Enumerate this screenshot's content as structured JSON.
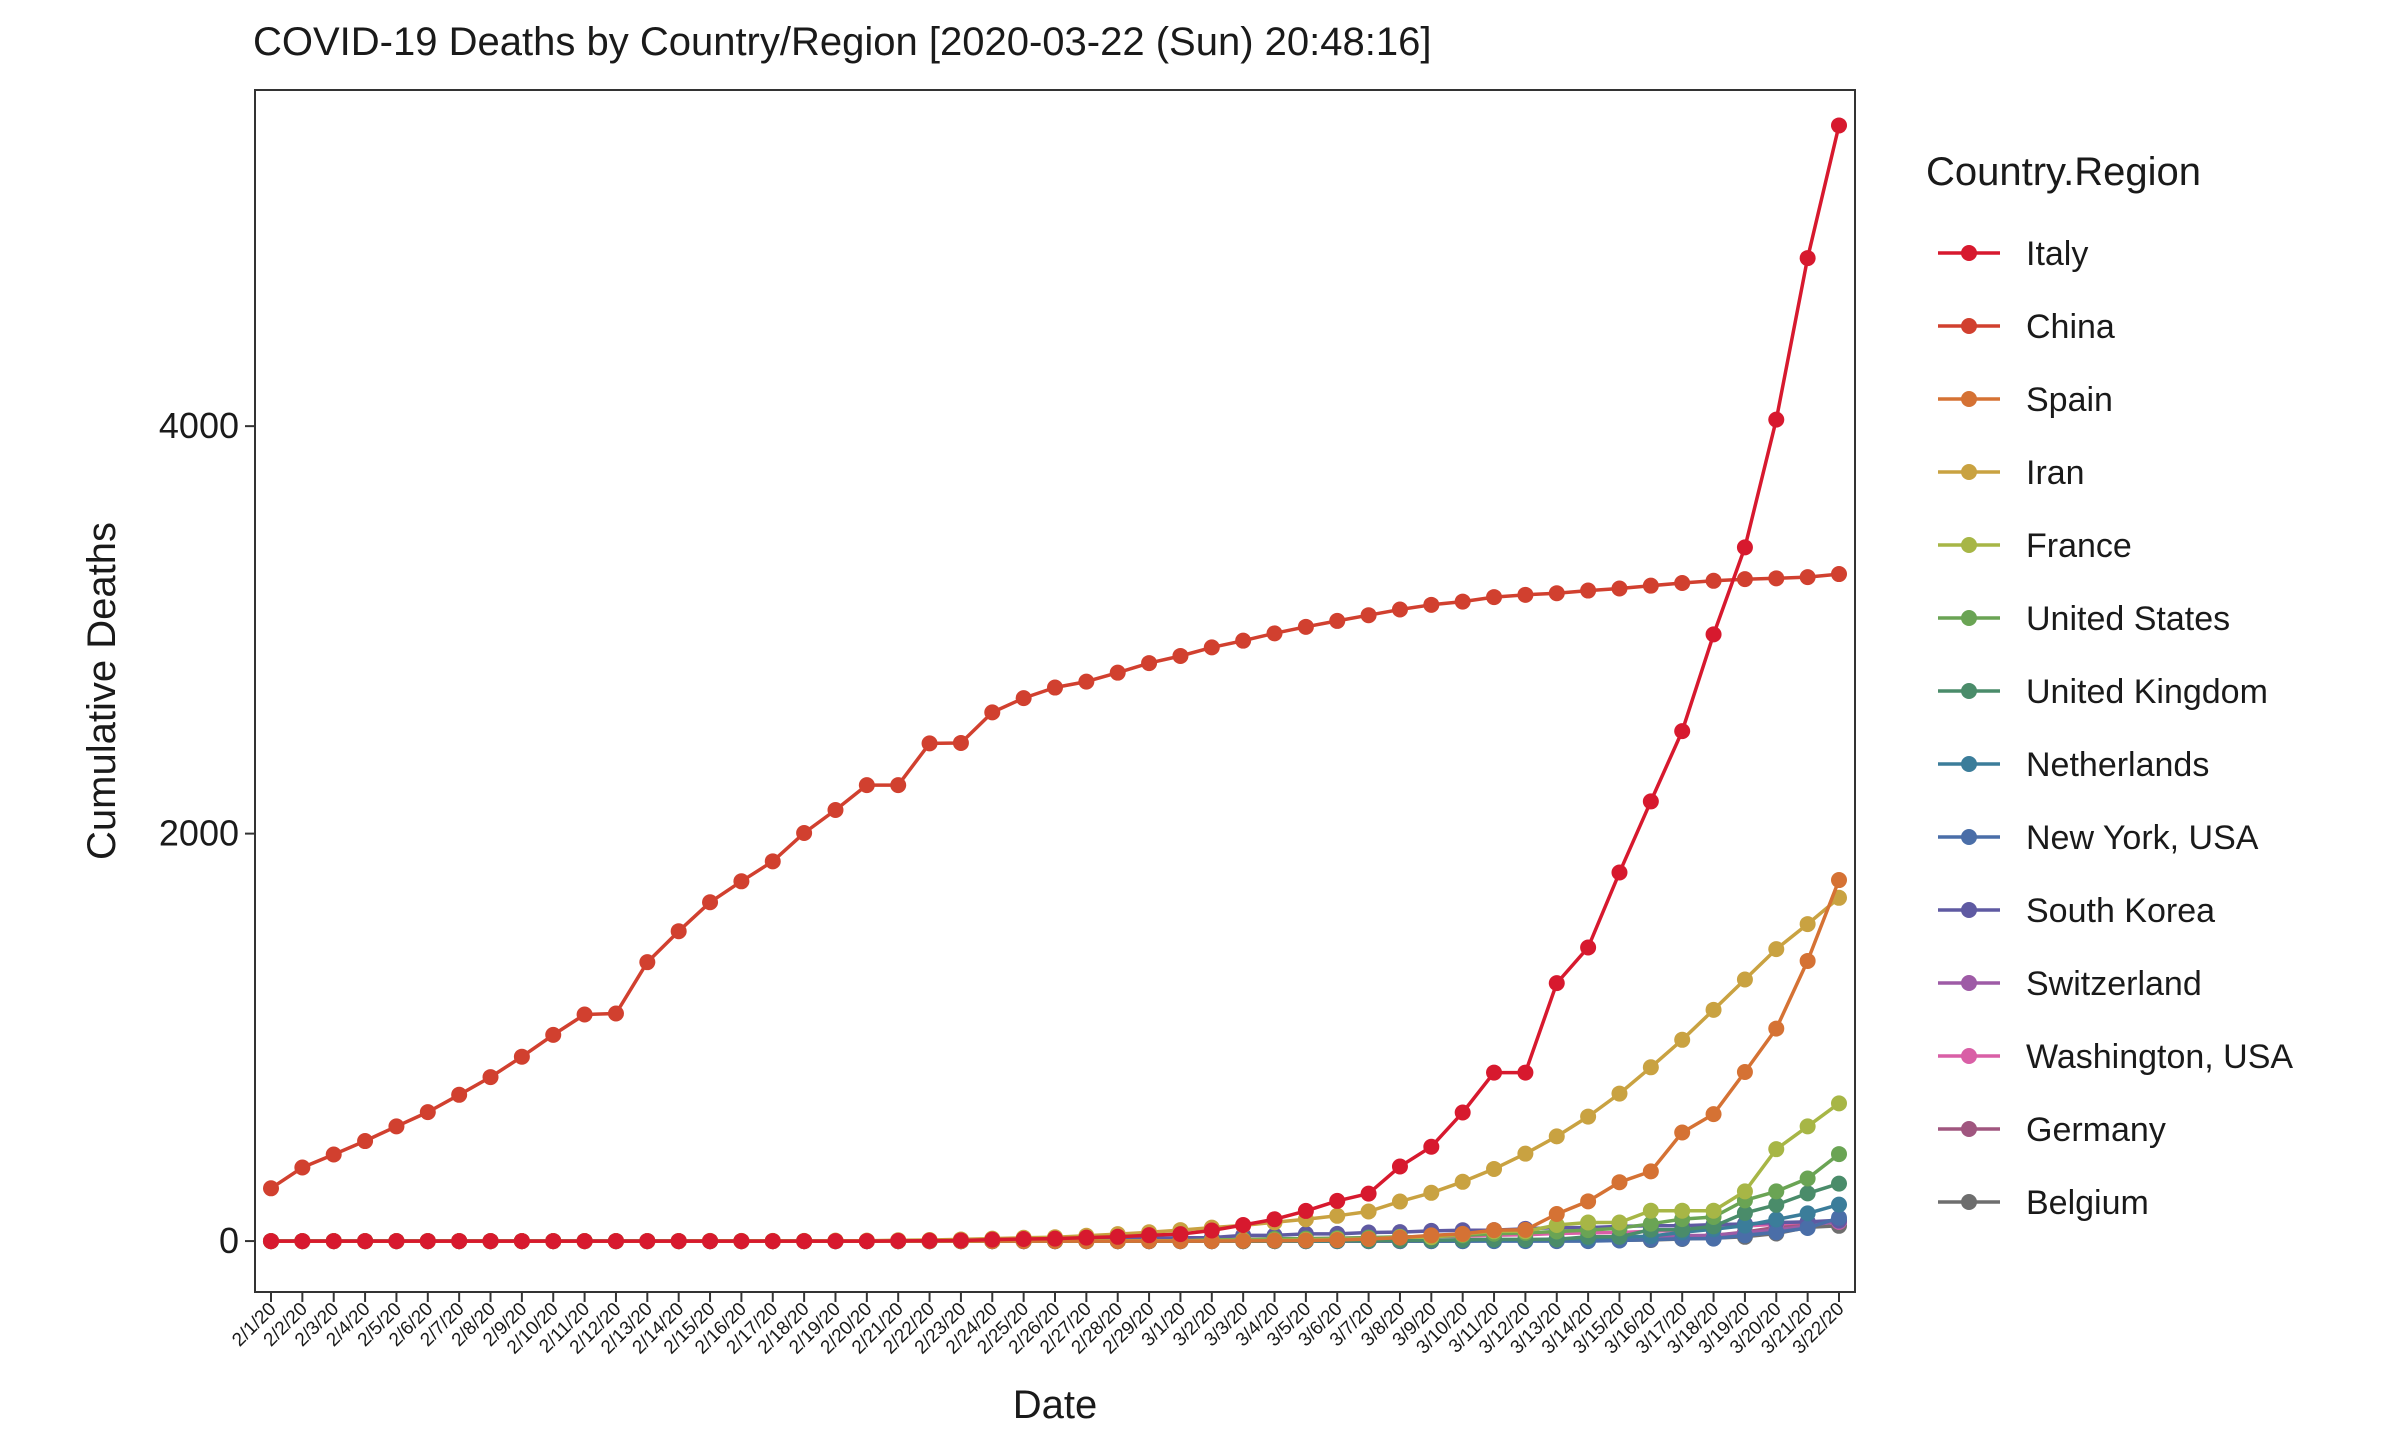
{
  "chart_data": {
    "type": "line",
    "title": "COVID-19 Deaths by Country/Region [2020-03-22 (Sun) 20:48:16]",
    "xlabel": "Date",
    "ylabel": "Cumulative Deaths",
    "legend_title": "Country.Region",
    "legend_position": "right",
    "grid": false,
    "ylim": [
      -250,
      5650
    ],
    "yticks": [
      0,
      2000,
      4000
    ],
    "x": [
      "2/1/20",
      "2/2/20",
      "2/3/20",
      "2/4/20",
      "2/5/20",
      "2/6/20",
      "2/7/20",
      "2/8/20",
      "2/9/20",
      "2/10/20",
      "2/11/20",
      "2/12/20",
      "2/13/20",
      "2/14/20",
      "2/15/20",
      "2/16/20",
      "2/17/20",
      "2/18/20",
      "2/19/20",
      "2/20/20",
      "2/21/20",
      "2/22/20",
      "2/23/20",
      "2/24/20",
      "2/25/20",
      "2/26/20",
      "2/27/20",
      "2/28/20",
      "2/29/20",
      "3/1/20",
      "3/2/20",
      "3/3/20",
      "3/4/20",
      "3/5/20",
      "3/6/20",
      "3/7/20",
      "3/8/20",
      "3/9/20",
      "3/10/20",
      "3/11/20",
      "3/12/20",
      "3/13/20",
      "3/14/20",
      "3/15/20",
      "3/16/20",
      "3/17/20",
      "3/18/20",
      "3/19/20",
      "3/20/20",
      "3/21/20",
      "3/22/20"
    ],
    "series": [
      {
        "name": "Belgium",
        "color": "#6e6e6e",
        "values": [
          0,
          0,
          0,
          0,
          0,
          0,
          0,
          0,
          0,
          0,
          0,
          0,
          0,
          0,
          0,
          0,
          0,
          0,
          0,
          0,
          0,
          0,
          0,
          0,
          0,
          0,
          0,
          0,
          0,
          0,
          0,
          0,
          0,
          0,
          0,
          0,
          0,
          0,
          0,
          3,
          3,
          3,
          4,
          4,
          5,
          10,
          14,
          21,
          37,
          67,
          75
        ]
      },
      {
        "name": "Germany",
        "color": "#a0567f",
        "values": [
          0,
          0,
          0,
          0,
          0,
          0,
          0,
          0,
          0,
          0,
          0,
          0,
          0,
          0,
          0,
          0,
          0,
          0,
          0,
          0,
          0,
          0,
          0,
          0,
          0,
          0,
          0,
          0,
          0,
          0,
          0,
          0,
          0,
          0,
          0,
          0,
          0,
          2,
          2,
          3,
          3,
          7,
          9,
          11,
          17,
          24,
          28,
          44,
          67,
          84,
          94
        ]
      },
      {
        "name": "Washington, USA",
        "color": "#d95fa6",
        "values": [
          0,
          0,
          0,
          0,
          0,
          0,
          0,
          0,
          0,
          0,
          0,
          0,
          0,
          0,
          0,
          0,
          0,
          0,
          0,
          0,
          0,
          0,
          0,
          0,
          0,
          0,
          0,
          0,
          0,
          1,
          6,
          9,
          10,
          11,
          14,
          16,
          18,
          22,
          24,
          29,
          31,
          37,
          40,
          42,
          48,
          54,
          66,
          74,
          83,
          94,
          95
        ]
      },
      {
        "name": "Switzerland",
        "color": "#9e5ba6",
        "values": [
          0,
          0,
          0,
          0,
          0,
          0,
          0,
          0,
          0,
          0,
          0,
          0,
          0,
          0,
          0,
          0,
          0,
          0,
          0,
          0,
          0,
          0,
          0,
          0,
          0,
          0,
          0,
          0,
          0,
          0,
          0,
          0,
          0,
          1,
          1,
          1,
          2,
          2,
          3,
          4,
          4,
          11,
          13,
          14,
          14,
          27,
          28,
          41,
          54,
          75,
          98
        ]
      },
      {
        "name": "South Korea",
        "color": "#5f5aa2",
        "values": [
          0,
          0,
          0,
          0,
          0,
          0,
          0,
          0,
          0,
          0,
          0,
          0,
          0,
          0,
          0,
          0,
          0,
          0,
          0,
          0,
          1,
          2,
          2,
          6,
          8,
          10,
          12,
          13,
          13,
          16,
          17,
          28,
          28,
          35,
          35,
          42,
          44,
          50,
          53,
          54,
          60,
          66,
          66,
          72,
          75,
          75,
          81,
          84,
          91,
          94,
          102
        ]
      },
      {
        "name": "New York, USA",
        "color": "#4a6ea8",
        "values": [
          0,
          0,
          0,
          0,
          0,
          0,
          0,
          0,
          0,
          0,
          0,
          0,
          0,
          0,
          0,
          0,
          0,
          0,
          0,
          0,
          0,
          0,
          0,
          0,
          0,
          0,
          0,
          0,
          0,
          0,
          0,
          0,
          0,
          0,
          0,
          0,
          0,
          0,
          0,
          0,
          0,
          0,
          0,
          3,
          7,
          12,
          12,
          28,
          43,
          64,
          114
        ]
      },
      {
        "name": "Netherlands",
        "color": "#3b7d9a",
        "values": [
          0,
          0,
          0,
          0,
          0,
          0,
          0,
          0,
          0,
          0,
          0,
          0,
          0,
          0,
          0,
          0,
          0,
          0,
          0,
          0,
          0,
          0,
          0,
          0,
          0,
          0,
          0,
          0,
          0,
          0,
          0,
          0,
          0,
          0,
          1,
          1,
          3,
          3,
          4,
          5,
          5,
          10,
          12,
          20,
          24,
          43,
          58,
          76,
          106,
          136,
          179
        ]
      },
      {
        "name": "United Kingdom",
        "color": "#4a8c6a",
        "values": [
          0,
          0,
          0,
          0,
          0,
          0,
          0,
          0,
          0,
          0,
          0,
          0,
          0,
          0,
          0,
          0,
          0,
          0,
          0,
          0,
          0,
          0,
          0,
          0,
          0,
          0,
          0,
          0,
          0,
          0,
          0,
          0,
          0,
          1,
          2,
          2,
          3,
          4,
          6,
          8,
          8,
          8,
          21,
          21,
          56,
          56,
          72,
          138,
          178,
          234,
          282
        ]
      },
      {
        "name": "United States",
        "color": "#6aa454",
        "values": [
          0,
          0,
          0,
          0,
          0,
          0,
          0,
          0,
          0,
          0,
          0,
          0,
          0,
          0,
          0,
          0,
          0,
          0,
          0,
          0,
          0,
          0,
          0,
          0,
          0,
          0,
          0,
          0,
          1,
          1,
          6,
          7,
          11,
          12,
          14,
          17,
          21,
          22,
          28,
          36,
          40,
          47,
          54,
          63,
          85,
          108,
          118,
          200,
          244,
          307,
          427
        ]
      },
      {
        "name": "France",
        "color": "#a7b646",
        "values": [
          0,
          0,
          0,
          0,
          0,
          0,
          0,
          0,
          0,
          0,
          0,
          0,
          0,
          0,
          1,
          1,
          1,
          1,
          1,
          1,
          1,
          1,
          1,
          1,
          1,
          2,
          2,
          2,
          2,
          2,
          3,
          4,
          4,
          6,
          9,
          11,
          19,
          19,
          33,
          48,
          48,
          79,
          91,
          91,
          149,
          149,
          149,
          244,
          451,
          563,
          676
        ]
      },
      {
        "name": "Iran",
        "color": "#c9a241",
        "values": [
          0,
          0,
          0,
          0,
          0,
          0,
          0,
          0,
          0,
          0,
          0,
          0,
          0,
          0,
          0,
          0,
          0,
          0,
          2,
          2,
          4,
          5,
          8,
          12,
          16,
          19,
          26,
          34,
          43,
          54,
          66,
          77,
          92,
          107,
          124,
          145,
          194,
          237,
          291,
          354,
          429,
          514,
          611,
          724,
          853,
          988,
          1135,
          1284,
          1433,
          1556,
          1685
        ]
      },
      {
        "name": "Spain",
        "color": "#d57234",
        "values": [
          0,
          0,
          0,
          0,
          0,
          0,
          0,
          0,
          0,
          0,
          0,
          0,
          0,
          0,
          0,
          0,
          0,
          0,
          0,
          0,
          0,
          0,
          0,
          0,
          0,
          0,
          0,
          0,
          0,
          0,
          0,
          1,
          2,
          3,
          5,
          10,
          17,
          28,
          35,
          54,
          55,
          133,
          195,
          289,
          342,
          533,
          623,
          830,
          1043,
          1375,
          1772
        ]
      },
      {
        "name": "China",
        "color": "#d1402f",
        "values": [
          259,
          361,
          425,
          491,
          563,
          633,
          718,
          805,
          905,
          1012,
          1112,
          1117,
          1369,
          1521,
          1663,
          1766,
          1864,
          2003,
          2116,
          2238,
          2238,
          2443,
          2445,
          2595,
          2665,
          2717,
          2746,
          2790,
          2837,
          2872,
          2914,
          2947,
          2983,
          3015,
          3044,
          3072,
          3100,
          3123,
          3139,
          3161,
          3172,
          3180,
          3193,
          3203,
          3217,
          3230,
          3241,
          3249,
          3253,
          3259,
          3274
        ]
      },
      {
        "name": "Italy",
        "color": "#d7192e",
        "values": [
          0,
          0,
          0,
          0,
          0,
          0,
          0,
          0,
          0,
          0,
          0,
          0,
          0,
          0,
          0,
          0,
          0,
          0,
          0,
          0,
          1,
          2,
          3,
          7,
          10,
          12,
          17,
          21,
          29,
          34,
          52,
          79,
          107,
          148,
          197,
          233,
          366,
          463,
          631,
          827,
          827,
          1266,
          1441,
          1809,
          2158,
          2503,
          2978,
          3405,
          4032,
          4825,
          5476
        ]
      }
    ],
    "legend_order": [
      "Italy",
      "China",
      "Spain",
      "Iran",
      "France",
      "United States",
      "United Kingdom",
      "Netherlands",
      "New York, USA",
      "South Korea",
      "Switzerland",
      "Washington, USA",
      "Germany",
      "Belgium"
    ]
  }
}
